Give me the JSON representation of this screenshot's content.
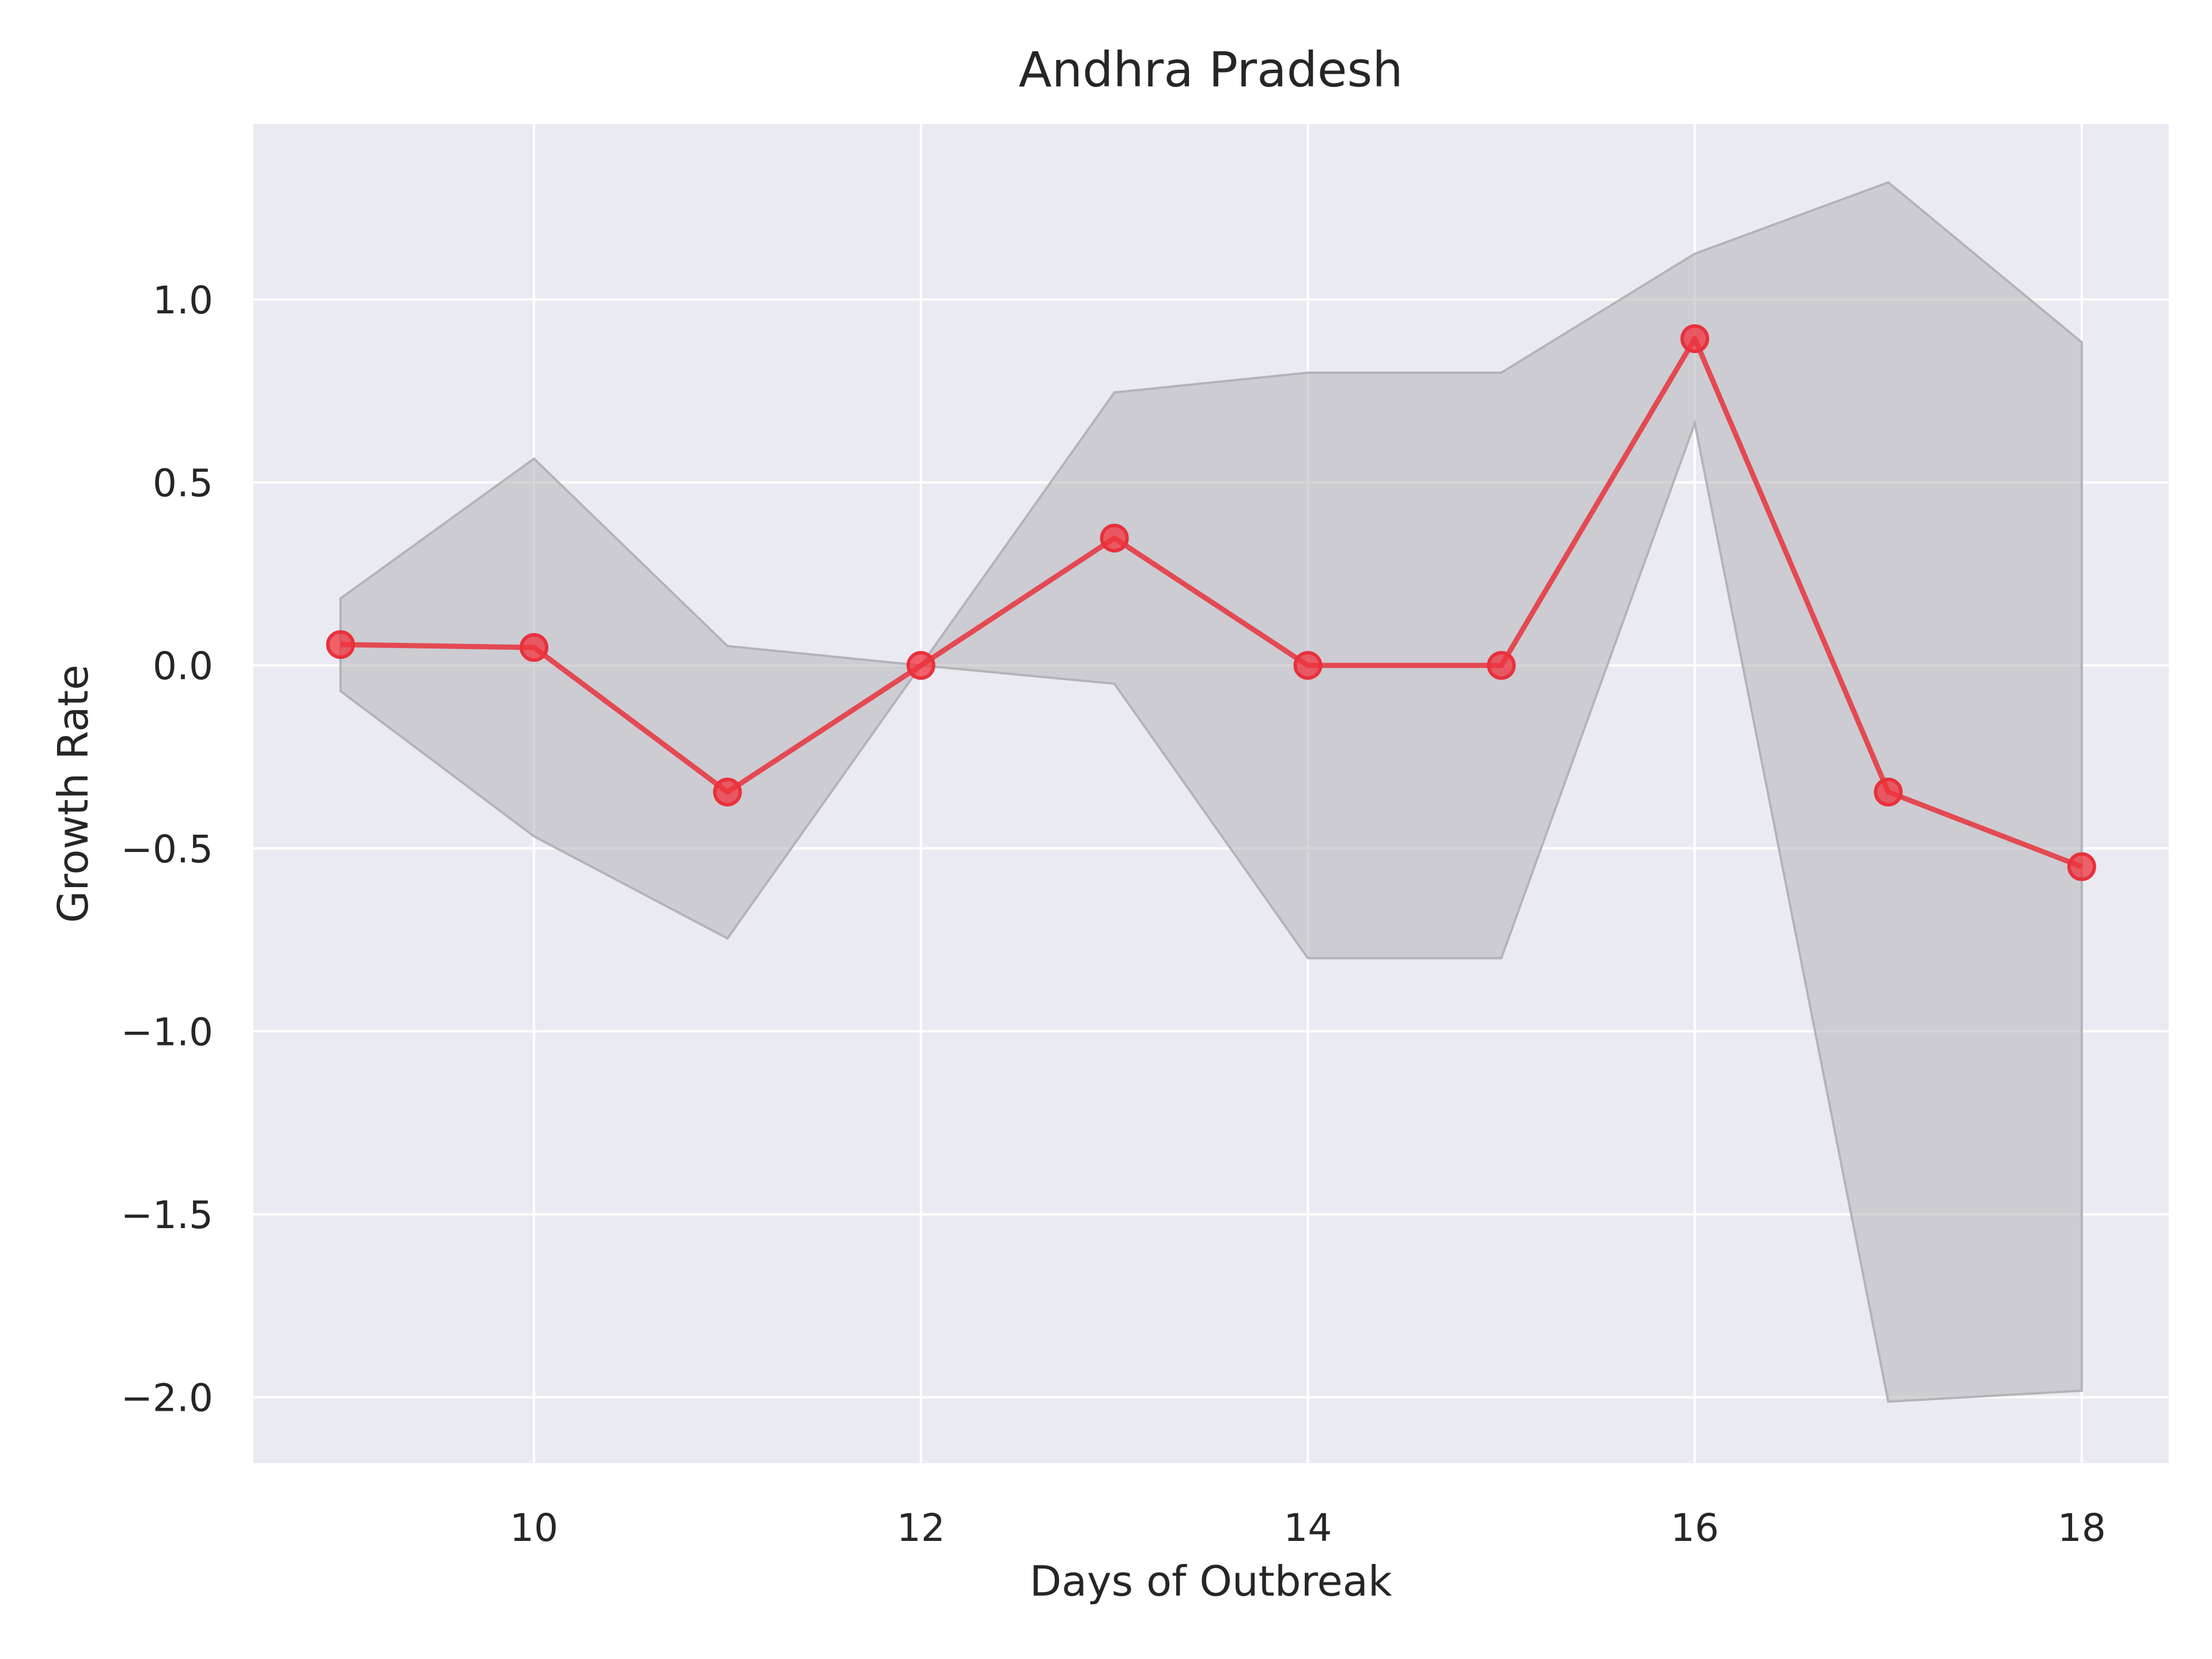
{
  "chart_data": {
    "type": "line",
    "title": "Andhra Pradesh",
    "xlabel": "Days of Outbreak",
    "ylabel": "Growth Rate",
    "xlim": [
      8.55,
      18.45
    ],
    "ylim": [
      -2.18,
      1.48
    ],
    "xticks": [
      10,
      12,
      14,
      16,
      18
    ],
    "xtick_labels": [
      "10",
      "12",
      "14",
      "16",
      "18"
    ],
    "yticks": [
      1.0,
      0.5,
      0.0,
      -0.5,
      -1.0,
      -1.5,
      -2.0
    ],
    "ytick_labels": [
      "1.0",
      "0.5",
      "0.0",
      "−0.5",
      "−1.0",
      "−1.5",
      "−2.0"
    ],
    "grid": true,
    "series": [
      {
        "x": [
          9,
          10,
          11,
          12,
          13,
          14,
          15,
          16,
          17,
          18
        ],
        "values": [
          0.057,
          0.049,
          -0.346,
          0.0,
          0.348,
          0.0,
          0.0,
          0.893,
          -0.346,
          -0.55
        ],
        "band_upper": [
          0.183,
          0.565,
          0.053,
          0.0,
          0.746,
          0.8,
          0.8,
          1.125,
          1.32,
          0.883
        ],
        "band_lower": [
          -0.07,
          -0.467,
          -0.746,
          0.0,
          -0.05,
          -0.8,
          -0.8,
          0.662,
          -2.012,
          -1.982
        ]
      }
    ],
    "colors": {
      "line": "#e8313c",
      "marker": "#f0313c",
      "band": "#b3b3b8",
      "plot_bg": "#eaeaf2",
      "grid": "#ffffff"
    }
  }
}
